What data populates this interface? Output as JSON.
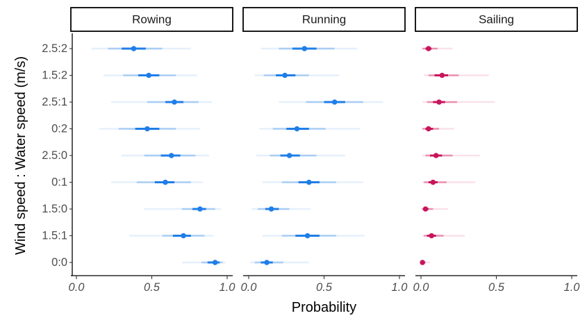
{
  "chart_data": {
    "type": "scatter",
    "subtype": "faceted point-interval plot",
    "title": "",
    "xlabel": "Probability",
    "ylabel": "Wind speed : Water speed (m/s)",
    "xlim": [
      0,
      1
    ],
    "xticks": [
      0,
      0.5,
      1
    ],
    "xtick_labels": [
      "0.0",
      "0.5",
      "1.0"
    ],
    "grid": false,
    "legend": "none",
    "categories": [
      "0:0",
      "1.5:1",
      "1.5:0",
      "0:1",
      "2.5:0",
      "0:2",
      "2.5:1",
      "1.5:2",
      "2.5:2"
    ],
    "intervals": [
      "66%",
      "95%",
      "99%"
    ],
    "facets": [
      {
        "name": "Rowing",
        "color": "#1f7ee8",
        "light": "#a9cdf5",
        "faint": "#e6f0fc",
        "points": [
          {
            "category": "0:0",
            "median": 0.92,
            "i66": [
              0.87,
              0.95
            ],
            "i95": [
              0.83,
              0.97
            ],
            "i99": [
              0.7,
              0.99
            ]
          },
          {
            "category": "1.5:1",
            "median": 0.71,
            "i66": [
              0.64,
              0.76
            ],
            "i95": [
              0.57,
              0.85
            ],
            "i99": [
              0.35,
              0.91
            ]
          },
          {
            "category": "1.5:0",
            "median": 0.82,
            "i66": [
              0.77,
              0.86
            ],
            "i95": [
              0.7,
              0.92
            ],
            "i99": [
              0.45,
              0.96
            ]
          },
          {
            "category": "0:1",
            "median": 0.59,
            "i66": [
              0.52,
              0.65
            ],
            "i95": [
              0.4,
              0.76
            ],
            "i99": [
              0.23,
              0.84
            ]
          },
          {
            "category": "2.5:0",
            "median": 0.63,
            "i66": [
              0.56,
              0.69
            ],
            "i95": [
              0.45,
              0.79
            ],
            "i99": [
              0.3,
              0.88
            ]
          },
          {
            "category": "0:2",
            "median": 0.47,
            "i66": [
              0.39,
              0.55
            ],
            "i95": [
              0.28,
              0.66
            ],
            "i99": [
              0.15,
              0.82
            ]
          },
          {
            "category": "2.5:1",
            "median": 0.65,
            "i66": [
              0.59,
              0.71
            ],
            "i95": [
              0.47,
              0.81
            ],
            "i99": [
              0.23,
              0.9
            ]
          },
          {
            "category": "1.5:2",
            "median": 0.48,
            "i66": [
              0.41,
              0.55
            ],
            "i95": [
              0.31,
              0.66
            ],
            "i99": [
              0.18,
              0.8
            ]
          },
          {
            "category": "2.5:2",
            "median": 0.38,
            "i66": [
              0.3,
              0.46
            ],
            "i95": [
              0.21,
              0.57
            ],
            "i99": [
              0.1,
              0.76
            ]
          }
        ]
      },
      {
        "name": "Running",
        "color": "#1f7ee8",
        "light": "#a9cdf5",
        "faint": "#e6f0fc",
        "points": [
          {
            "category": "0:0",
            "median": 0.12,
            "i66": [
              0.08,
              0.16
            ],
            "i95": [
              0.04,
              0.23
            ],
            "i99": [
              0.01,
              0.4
            ]
          },
          {
            "category": "1.5:1",
            "median": 0.39,
            "i66": [
              0.31,
              0.47
            ],
            "i95": [
              0.22,
              0.58
            ],
            "i99": [
              0.09,
              0.77
            ]
          },
          {
            "category": "1.5:0",
            "median": 0.15,
            "i66": [
              0.11,
              0.2
            ],
            "i95": [
              0.06,
              0.27
            ],
            "i99": [
              0.02,
              0.41
            ]
          },
          {
            "category": "0:1",
            "median": 0.4,
            "i66": [
              0.33,
              0.47
            ],
            "i95": [
              0.22,
              0.58
            ],
            "i99": [
              0.09,
              0.76
            ]
          },
          {
            "category": "2.5:0",
            "median": 0.27,
            "i66": [
              0.21,
              0.34
            ],
            "i95": [
              0.14,
              0.45
            ],
            "i99": [
              0.05,
              0.64
            ]
          },
          {
            "category": "0:2",
            "median": 0.32,
            "i66": [
              0.25,
              0.4
            ],
            "i95": [
              0.16,
              0.51
            ],
            "i99": [
              0.07,
              0.74
            ]
          },
          {
            "category": "2.5:1",
            "median": 0.57,
            "i66": [
              0.5,
              0.64
            ],
            "i95": [
              0.38,
              0.76
            ],
            "i99": [
              0.2,
              0.89
            ]
          },
          {
            "category": "1.5:2",
            "median": 0.24,
            "i66": [
              0.18,
              0.31
            ],
            "i95": [
              0.1,
              0.4
            ],
            "i99": [
              0.04,
              0.6
            ]
          },
          {
            "category": "2.5:2",
            "median": 0.37,
            "i66": [
              0.29,
              0.45
            ],
            "i95": [
              0.2,
              0.57
            ],
            "i99": [
              0.08,
              0.72
            ]
          }
        ]
      },
      {
        "name": "Sailing",
        "color": "#c8155c",
        "light": "#e990b2",
        "faint": "#fae1ea",
        "points": [
          {
            "category": "0:0",
            "median": 0.01,
            "i66": [
              0.005,
              0.02
            ],
            "i95": [
              0.002,
              0.03
            ],
            "i99": [
              0.0,
              0.06
            ]
          },
          {
            "category": "1.5:1",
            "median": 0.07,
            "i66": [
              0.04,
              0.1
            ],
            "i95": [
              0.02,
              0.15
            ],
            "i99": [
              0.01,
              0.29
            ]
          },
          {
            "category": "1.5:0",
            "median": 0.03,
            "i66": [
              0.015,
              0.05
            ],
            "i95": [
              0.007,
              0.08
            ],
            "i99": [
              0.002,
              0.18
            ]
          },
          {
            "category": "0:1",
            "median": 0.08,
            "i66": [
              0.05,
              0.11
            ],
            "i95": [
              0.02,
              0.17
            ],
            "i99": [
              0.01,
              0.36
            ]
          },
          {
            "category": "2.5:0",
            "median": 0.1,
            "i66": [
              0.06,
              0.14
            ],
            "i95": [
              0.03,
              0.21
            ],
            "i99": [
              0.01,
              0.39
            ]
          },
          {
            "category": "0:2",
            "median": 0.05,
            "i66": [
              0.03,
              0.08
            ],
            "i95": [
              0.01,
              0.12
            ],
            "i99": [
              0.004,
              0.22
            ]
          },
          {
            "category": "2.5:1",
            "median": 0.12,
            "i66": [
              0.08,
              0.16
            ],
            "i95": [
              0.04,
              0.24
            ],
            "i99": [
              0.01,
              0.49
            ]
          },
          {
            "category": "1.5:2",
            "median": 0.14,
            "i66": [
              0.09,
              0.18
            ],
            "i95": [
              0.05,
              0.25
            ],
            "i99": [
              0.02,
              0.45
            ]
          },
          {
            "category": "2.5:2",
            "median": 0.05,
            "i66": [
              0.03,
              0.07
            ],
            "i95": [
              0.01,
              0.11
            ],
            "i99": [
              0.004,
              0.21
            ]
          }
        ]
      }
    ]
  }
}
